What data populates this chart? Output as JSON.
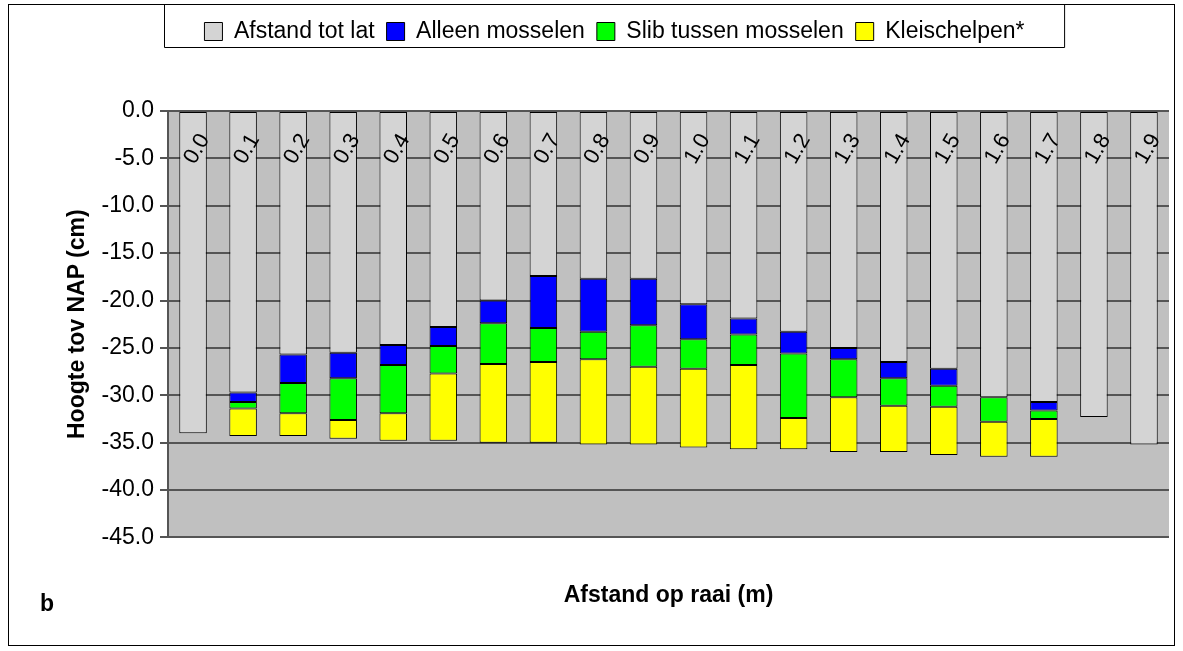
{
  "chart_data": {
    "type": "bar",
    "stacked": true,
    "xlabel": "Afstand op raai (m)",
    "ylabel": "Hoogte tov NAP (cm)",
    "categories": [
      "0.0",
      "0.1",
      "0.2",
      "0.3",
      "0.4",
      "0.5",
      "0.6",
      "0.7",
      "0.8",
      "0.9",
      "1.0",
      "1.1",
      "1.2",
      "1.3",
      "1.4",
      "1.5",
      "1.6",
      "1.7",
      "1.8",
      "1.9"
    ],
    "series": [
      {
        "name": "Afstand tot lat",
        "color": "#d4d4d4",
        "values": [
          -34.0,
          -29.7,
          -25.7,
          -25.5,
          -24.7,
          -22.8,
          -20.0,
          -17.4,
          -17.7,
          -17.7,
          -20.4,
          -21.9,
          -23.3,
          -25.0,
          -26.5,
          -27.2,
          -30.2,
          -30.7,
          -32.3,
          -35.2
        ]
      },
      {
        "name": "Alleen mosselen",
        "color": "#0000ff",
        "values": [
          null,
          -1.0,
          -3.0,
          -2.7,
          -2.1,
          -2.0,
          -2.4,
          -5.5,
          -5.6,
          -4.9,
          -3.7,
          -1.7,
          -2.3,
          -1.2,
          -1.7,
          -1.8,
          null,
          -0.9,
          null,
          null
        ]
      },
      {
        "name": "Slib tussen mosselen",
        "color": "#00ff00",
        "values": [
          null,
          -0.7,
          -3.2,
          -4.4,
          -5.1,
          -2.9,
          -4.3,
          -3.6,
          -2.9,
          -4.4,
          -3.1,
          -3.2,
          -6.8,
          -4.0,
          -2.9,
          -2.2,
          -2.6,
          -0.9,
          null,
          null
        ]
      },
      {
        "name": "Kleischelpen*",
        "color": "#ffff00",
        "values": [
          null,
          -2.9,
          -2.4,
          -2.0,
          -2.9,
          -7.1,
          -8.3,
          -8.5,
          -9.0,
          -8.2,
          -8.3,
          -8.9,
          -3.3,
          -5.8,
          -4.9,
          -5.1,
          -3.7,
          -4.0,
          null,
          null
        ]
      }
    ],
    "ylim": [
      -45,
      0
    ],
    "yticks": [
      {
        "value": -45,
        "label": "-45.0"
      },
      {
        "value": -40,
        "label": "-40.0"
      },
      {
        "value": -35,
        "label": "-35.0"
      },
      {
        "value": -30,
        "label": "-30.0"
      },
      {
        "value": -25,
        "label": "-25.0"
      },
      {
        "value": -20,
        "label": "-20.0"
      },
      {
        "value": -15,
        "label": "-15.0"
      },
      {
        "value": -10,
        "label": "-10.0"
      },
      {
        "value": -5,
        "label": "-5.0"
      },
      {
        "value": 0,
        "label": "0.0"
      }
    ],
    "grid": "y",
    "legend": "top",
    "annotations": [
      "b"
    ]
  }
}
